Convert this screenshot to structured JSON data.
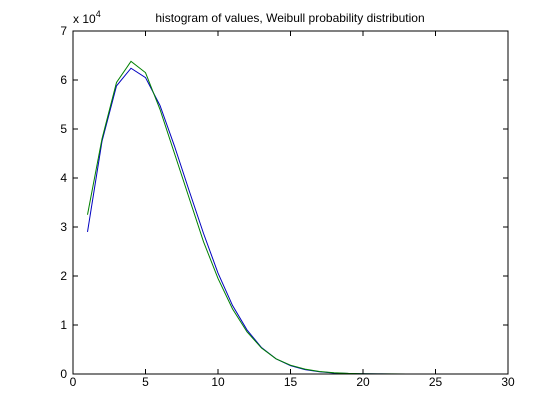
{
  "chart_data": {
    "type": "line",
    "title": "histogram of values, Weibull probability distribution",
    "xlabel": "",
    "ylabel": "",
    "y_multiplier_label": {
      "prefix": "x 10",
      "exponent": "4"
    },
    "xlim": [
      0,
      30
    ],
    "ylim": [
      0,
      70000
    ],
    "x_ticks": [
      0,
      5,
      10,
      15,
      20,
      25,
      30
    ],
    "x_tick_labels": [
      "0",
      "5",
      "10",
      "15",
      "20",
      "25",
      "30"
    ],
    "y_ticks": [
      0,
      10000,
      20000,
      30000,
      40000,
      50000,
      60000,
      70000
    ],
    "y_tick_labels": [
      "0",
      "1",
      "2",
      "3",
      "4",
      "5",
      "6",
      "7"
    ],
    "grid": false,
    "legend": "none",
    "series": [
      {
        "color": "#0000c0",
        "x": [
          1,
          2,
          3,
          4,
          5,
          6,
          7,
          8,
          9,
          10,
          11,
          12,
          13,
          14,
          15,
          16,
          17,
          18,
          19,
          20,
          21,
          22,
          23,
          24,
          25,
          26,
          27,
          28,
          29,
          30
        ],
        "values": [
          29000,
          47500,
          58800,
          62400,
          60500,
          54800,
          46500,
          37500,
          28700,
          20600,
          14000,
          9000,
          5400,
          3100,
          1700,
          900,
          450,
          200,
          100,
          50,
          20,
          10,
          5,
          2,
          1,
          0,
          0,
          0,
          0,
          0
        ]
      },
      {
        "color": "#008000",
        "x": [
          1,
          2,
          3,
          4,
          5,
          6,
          7,
          8,
          9,
          10,
          11,
          12,
          13,
          14,
          15,
          16,
          17,
          18,
          19,
          20,
          21,
          22,
          23,
          24,
          25,
          26,
          27,
          28,
          29,
          30
        ],
        "values": [
          32500,
          48000,
          59500,
          63800,
          61500,
          54000,
          45000,
          36000,
          27000,
          19500,
          13300,
          8600,
          5300,
          3100,
          1800,
          1000,
          500,
          250,
          120,
          60,
          30,
          15,
          7,
          3,
          1,
          0,
          0,
          0,
          0,
          0
        ]
      }
    ]
  }
}
